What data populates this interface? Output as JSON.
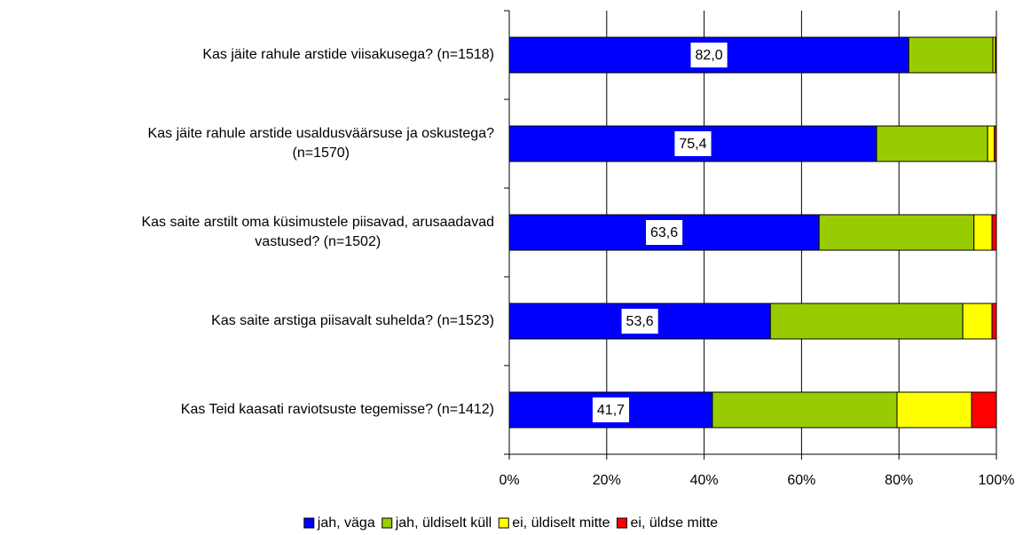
{
  "chart_data": {
    "type": "stacked_bar_horizontal",
    "categories": [
      "Kas jäite rahule arstide viisakusega? (n=1518)",
      "Kas jäite rahule arstide usaldusväärsuse ja oskustega?\n(n=1570)",
      "Kas saite arstilt oma küsimustele piisavad, arusaadavad\nvastused? (n=1502)",
      "Kas saite arstiga piisavalt suhelda? (n=1523)",
      "Kas Teid kaasati raviotsuste tegemisse? (n=1412)"
    ],
    "series": [
      {
        "name": "jah, väga",
        "color": "#0000ff",
        "values": [
          82.0,
          75.4,
          63.6,
          53.6,
          41.7
        ],
        "value_labels": [
          "82,0",
          "75,4",
          "63,6",
          "53,6",
          "41,7"
        ]
      },
      {
        "name": "jah, üldiselt küll",
        "color": "#99cc00",
        "values": [
          17.3,
          22.8,
          31.8,
          39.5,
          37.9
        ]
      },
      {
        "name": "ei, üldiselt mitte",
        "color": "#ffff00",
        "values": [
          0.5,
          1.4,
          3.7,
          6.0,
          15.3
        ]
      },
      {
        "name": "ei, üldse mitte",
        "color": "#ff0000",
        "values": [
          0.2,
          0.4,
          0.9,
          0.9,
          5.1
        ]
      }
    ],
    "xlim": [
      0,
      100
    ],
    "xticks": [
      {
        "value": 0,
        "label": "0%"
      },
      {
        "value": 20,
        "label": "20%"
      },
      {
        "value": 40,
        "label": "40%"
      },
      {
        "value": 60,
        "label": "60%"
      },
      {
        "value": 80,
        "label": "80%"
      },
      {
        "value": 100,
        "label": "100%"
      }
    ],
    "grid": true,
    "legend": "bottom"
  }
}
